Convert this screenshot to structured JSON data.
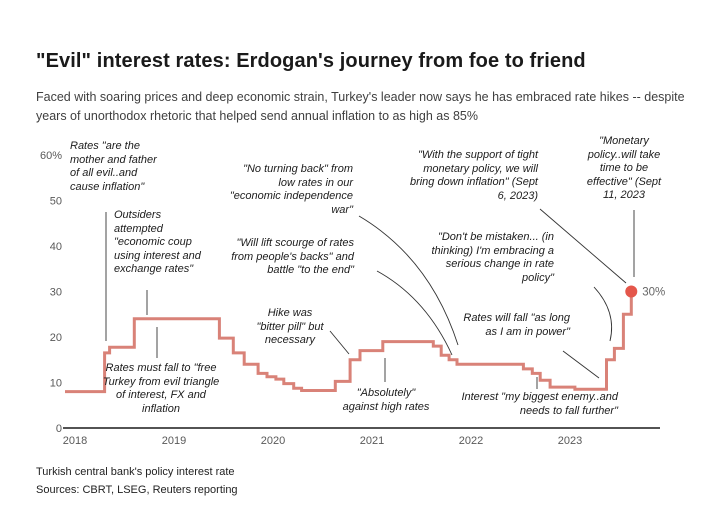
{
  "header": {
    "title": "\"Evil\" interest rates: Erdogan's journey from foe to friend",
    "subtitle": "Faced with soaring prices and deep economic strain, Turkey's leader now says he has embraced rate hikes -- despite years of unorthodox rhetoric that helped send annual inflation to as high as 85%"
  },
  "chart_data": {
    "type": "line",
    "step": true,
    "title": "Turkish central bank's policy interest rate",
    "ylabel": "percent",
    "ylim": [
      0,
      60
    ],
    "xlim": [
      2018,
      2023.95
    ],
    "grid": false,
    "line_color": "#d98278",
    "dot_color": "#e4564a",
    "end_label": "30%",
    "yticks": [
      "60%",
      "50",
      "40",
      "30",
      "20",
      "10",
      "0"
    ],
    "ytick_values": [
      60,
      50,
      40,
      30,
      20,
      10,
      0
    ],
    "xticks": [
      "2018",
      "2019",
      "2020",
      "2021",
      "2022",
      "2023"
    ],
    "xtick_values": [
      2018,
      2019,
      2020,
      2021,
      2022,
      2023
    ],
    "points": [
      {
        "date": "Jan 2018",
        "t": 2018.0,
        "rate": 8.0
      },
      {
        "date": "May 2018",
        "t": 2018.4,
        "rate": 16.5
      },
      {
        "date": "Jun 2018",
        "t": 2018.45,
        "rate": 17.75
      },
      {
        "date": "Sep 2018",
        "t": 2018.7,
        "rate": 24.0
      },
      {
        "date": "Jul 2019",
        "t": 2019.56,
        "rate": 19.75
      },
      {
        "date": "Sep 2019",
        "t": 2019.7,
        "rate": 16.5
      },
      {
        "date": "Oct 2019",
        "t": 2019.81,
        "rate": 14.0
      },
      {
        "date": "Dec 2019",
        "t": 2019.95,
        "rate": 12.0
      },
      {
        "date": "Jan 2020",
        "t": 2020.04,
        "rate": 11.25
      },
      {
        "date": "Feb 2020",
        "t": 2020.13,
        "rate": 10.75
      },
      {
        "date": "Mar 2020",
        "t": 2020.21,
        "rate": 9.75
      },
      {
        "date": "Apr 2020",
        "t": 2020.31,
        "rate": 8.75
      },
      {
        "date": "May 2020",
        "t": 2020.39,
        "rate": 8.25
      },
      {
        "date": "Sep 2020",
        "t": 2020.73,
        "rate": 10.25
      },
      {
        "date": "Nov 2020",
        "t": 2020.88,
        "rate": 15.0
      },
      {
        "date": "Dec 2020",
        "t": 2020.98,
        "rate": 17.0
      },
      {
        "date": "Mar 2021",
        "t": 2021.21,
        "rate": 19.0
      },
      {
        "date": "Sep 2021",
        "t": 2021.72,
        "rate": 18.0
      },
      {
        "date": "Oct 2021",
        "t": 2021.8,
        "rate": 16.0
      },
      {
        "date": "Nov 2021",
        "t": 2021.88,
        "rate": 15.0
      },
      {
        "date": "Dec 2021",
        "t": 2021.96,
        "rate": 14.0
      },
      {
        "date": "Aug 2022",
        "t": 2022.63,
        "rate": 13.0
      },
      {
        "date": "Sep 2022",
        "t": 2022.72,
        "rate": 12.0
      },
      {
        "date": "Oct 2022",
        "t": 2022.8,
        "rate": 10.5
      },
      {
        "date": "Nov 2022",
        "t": 2022.9,
        "rate": 9.0
      },
      {
        "date": "Feb 2023",
        "t": 2023.15,
        "rate": 8.5
      },
      {
        "date": "Jun 2023",
        "t": 2023.47,
        "rate": 15.0
      },
      {
        "date": "Jul 2023",
        "t": 2023.55,
        "rate": 17.5
      },
      {
        "date": "Aug 2023",
        "t": 2023.64,
        "rate": 25.0
      },
      {
        "date": "Sep 2023",
        "t": 2023.72,
        "rate": 30.0
      }
    ]
  },
  "annotations": [
    {
      "id": "evil",
      "text": "Rates \"are the mother and father of all evil..and cause inflation\""
    },
    {
      "id": "coup",
      "text": "Outsiders attempted \"economic coup using interest and exchange rates\""
    },
    {
      "id": "free",
      "text": "Rates must fall to \"free Turkey from evil triangle of interest, FX and inflation"
    },
    {
      "id": "noturning",
      "text": "\"No turning back\" from low rates in our \"economic independence war\""
    },
    {
      "id": "scourge",
      "text": "\"Will lift scourge of rates from people's backs\" and battle \"to the end\""
    },
    {
      "id": "bitter",
      "text": "Hike was \"bitter pill\" but necessary"
    },
    {
      "id": "absolutely",
      "text": "\"Absolutely\" against high rates"
    },
    {
      "id": "tight",
      "text": "\"With the support of tight monetary policy, we will bring down inflation\" (Sept 6, 2023)"
    },
    {
      "id": "mistaken",
      "text": "\"Don't be mistaken... (in thinking) I'm embracing a serious change in rate policy\""
    },
    {
      "id": "power",
      "text": "Rates will fall \"as long as I am in power\""
    },
    {
      "id": "enemy",
      "text": "Interest \"my biggest enemy..and needs to fall further\""
    },
    {
      "id": "monetary",
      "text": "\"Monetary policy..will take time to be effective\" (Sept 11, 2023"
    }
  ],
  "footer": {
    "note": "Turkish central bank's policy interest rate",
    "sources": "Sources: CBRT, LSEG, Reuters reporting"
  }
}
